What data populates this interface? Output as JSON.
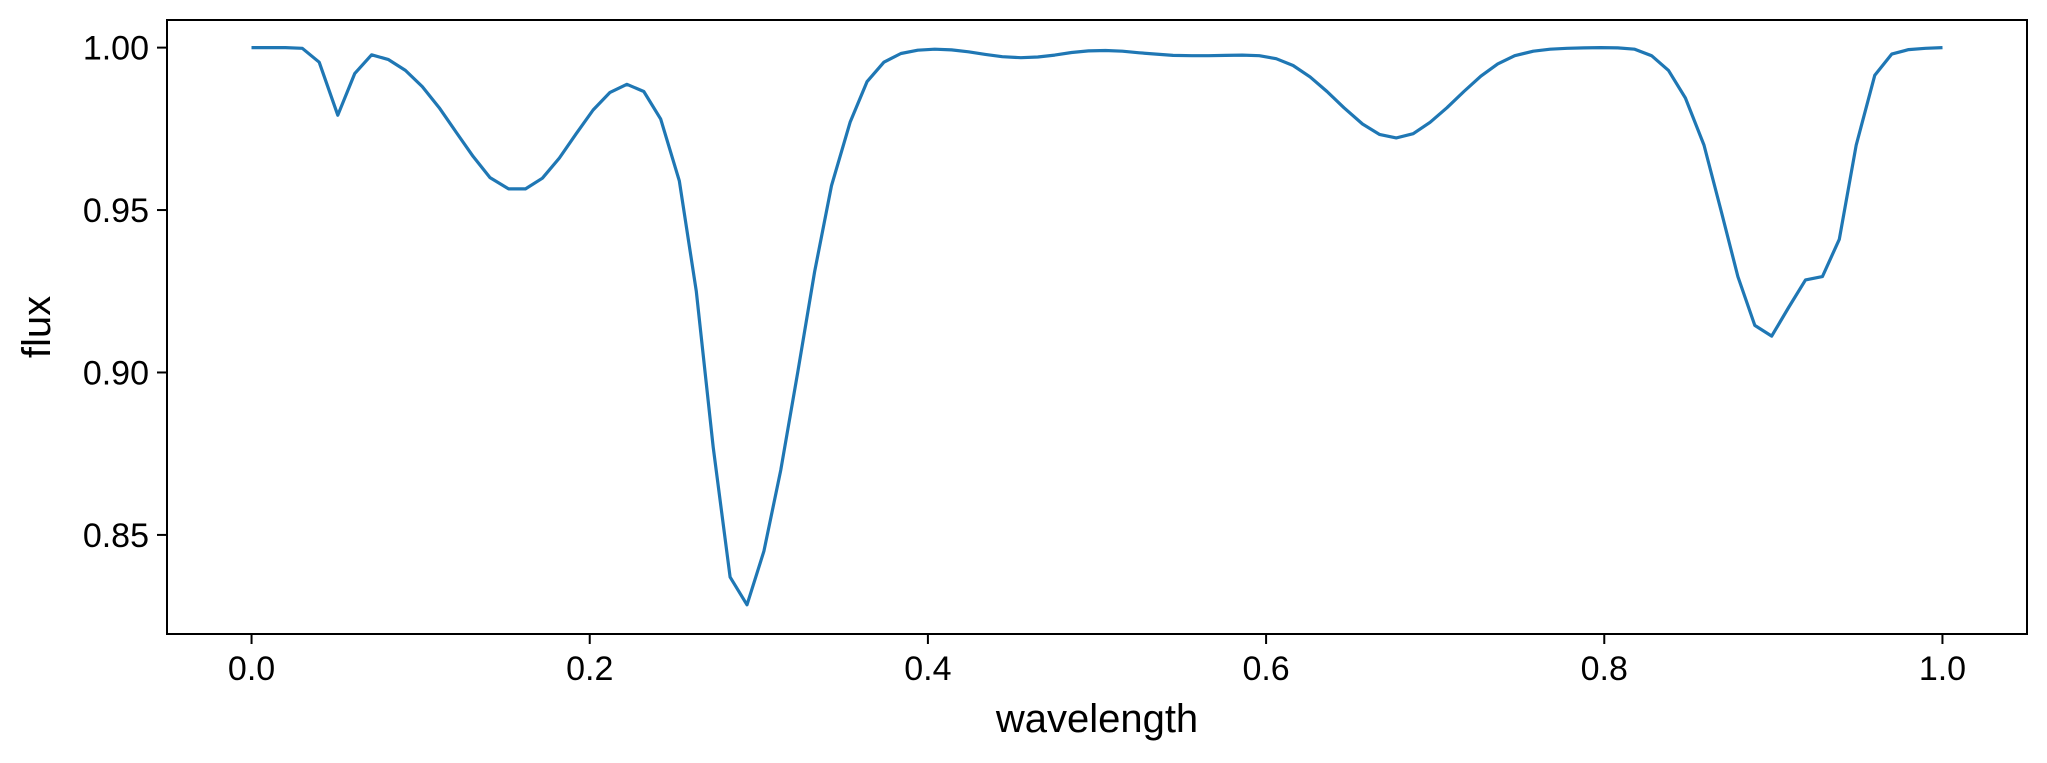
{
  "chart_data": {
    "type": "line",
    "xlabel": "wavelength",
    "ylabel": "flux",
    "xlim": [
      -0.05,
      1.05
    ],
    "ylim": [
      0.8195,
      1.0085
    ],
    "xticks": [
      0.0,
      0.2,
      0.4,
      0.6,
      0.8,
      1.0
    ],
    "xtick_labels": [
      "0.0",
      "0.2",
      "0.4",
      "0.6",
      "0.8",
      "1.0"
    ],
    "yticks": [
      0.85,
      0.9,
      0.95,
      1.0
    ],
    "ytick_labels": [
      "0.85",
      "0.90",
      "0.95",
      "1.00"
    ],
    "grid": false,
    "colors": {
      "line": "#1f77b4",
      "frame": "#000000"
    },
    "series": [
      {
        "x": [
          0.0,
          0.01,
          0.02,
          0.03,
          0.04,
          0.051,
          0.061,
          0.071,
          0.081,
          0.091,
          0.101,
          0.111,
          0.121,
          0.131,
          0.141,
          0.152,
          0.162,
          0.172,
          0.182,
          0.192,
          0.202,
          0.212,
          0.222,
          0.232,
          0.242,
          0.253,
          0.263,
          0.273,
          0.283,
          0.293,
          0.303,
          0.313,
          0.323,
          0.333,
          0.343,
          0.354,
          0.364,
          0.374,
          0.384,
          0.394,
          0.404,
          0.414,
          0.424,
          0.434,
          0.444,
          0.455,
          0.465,
          0.475,
          0.485,
          0.495,
          0.505,
          0.515,
          0.525,
          0.535,
          0.545,
          0.556,
          0.566,
          0.576,
          0.586,
          0.596,
          0.606,
          0.616,
          0.626,
          0.636,
          0.646,
          0.657,
          0.667,
          0.677,
          0.687,
          0.697,
          0.707,
          0.717,
          0.727,
          0.737,
          0.747,
          0.758,
          0.768,
          0.778,
          0.788,
          0.798,
          0.808,
          0.818,
          0.828,
          0.838,
          0.848,
          0.859,
          0.869,
          0.879,
          0.889,
          0.899,
          0.909,
          0.919,
          0.929,
          0.939,
          0.949,
          0.96,
          0.97,
          0.98,
          0.99,
          1.0
        ],
        "y": [
          1.0,
          1.0,
          1.0,
          0.9998,
          0.9955,
          0.9792,
          0.992,
          0.9978,
          0.9963,
          0.993,
          0.988,
          0.9815,
          0.974,
          0.9665,
          0.96,
          0.9565,
          0.9565,
          0.9598,
          0.966,
          0.9735,
          0.9808,
          0.9862,
          0.9887,
          0.9865,
          0.978,
          0.959,
          0.925,
          0.877,
          0.837,
          0.8285,
          0.845,
          0.87,
          0.9,
          0.931,
          0.9575,
          0.977,
          0.9895,
          0.9955,
          0.9982,
          0.9992,
          0.9995,
          0.9993,
          0.9987,
          0.9979,
          0.9972,
          0.9969,
          0.9971,
          0.9977,
          0.9985,
          0.999,
          0.9991,
          0.9989,
          0.9984,
          0.998,
          0.9976,
          0.9975,
          0.9975,
          0.9976,
          0.9977,
          0.9975,
          0.9966,
          0.9945,
          0.991,
          0.9865,
          0.9815,
          0.9765,
          0.9733,
          0.9722,
          0.9735,
          0.977,
          0.9815,
          0.9865,
          0.9912,
          0.995,
          0.9975,
          0.9989,
          0.9995,
          0.9998,
          0.9999,
          1.0,
          0.9999,
          0.9995,
          0.9975,
          0.993,
          0.9845,
          0.97,
          0.95,
          0.9295,
          0.9145,
          0.9112,
          0.92,
          0.9285,
          0.9295,
          0.941,
          0.97,
          0.9915,
          0.998,
          0.9994,
          0.9998,
          1.0
        ]
      }
    ]
  }
}
